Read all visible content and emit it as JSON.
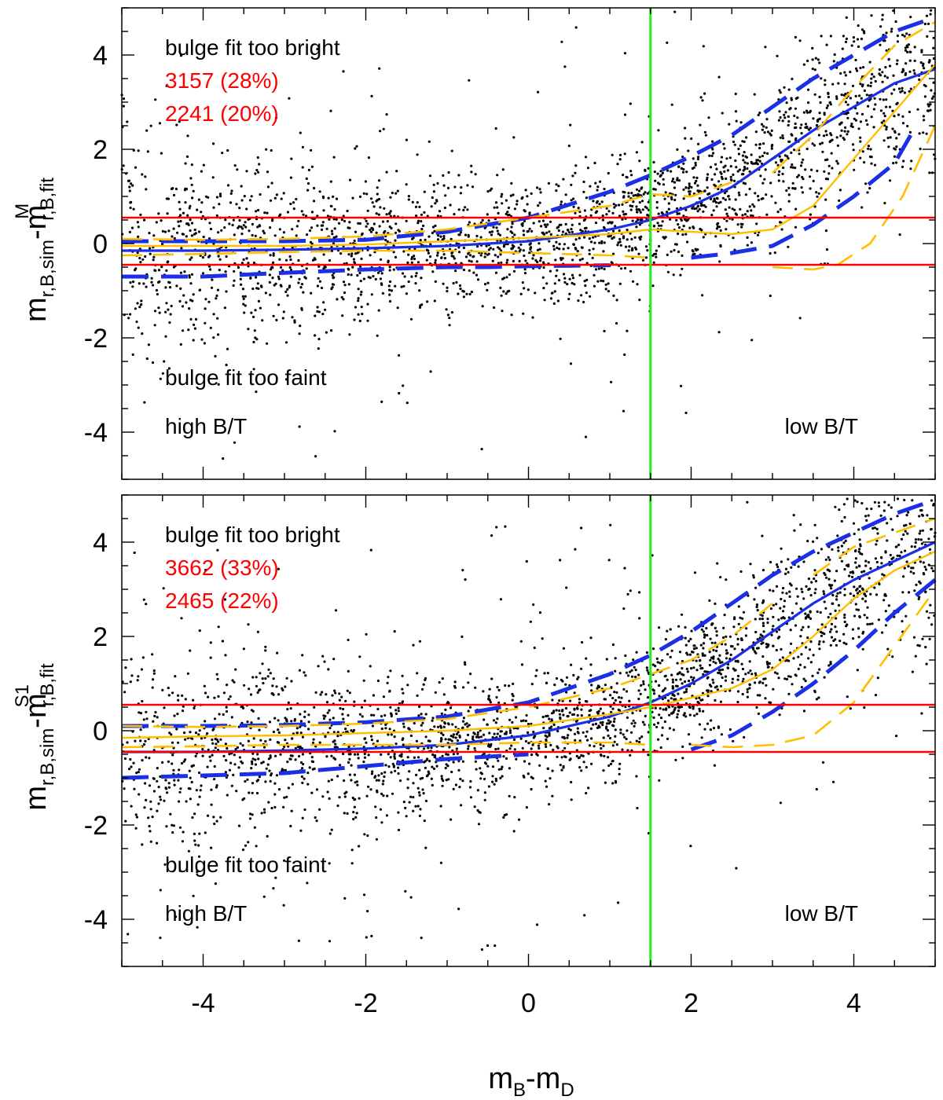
{
  "chart_data": [
    {
      "type": "scatter",
      "panel": "top",
      "xlabel": "m_B-m_D",
      "ylabel": {
        "base": "m",
        "sub1": "r,B,sim",
        "mid": "-m",
        "sup": "M",
        "sub2": "r,B,fit"
      },
      "xlim": [
        -5,
        5
      ],
      "ylim": [
        -5,
        5
      ],
      "xticks": [
        -4,
        -2,
        0,
        2,
        4
      ],
      "yticks": [
        -4,
        -2,
        0,
        2,
        4
      ],
      "hlines": [
        0.55,
        -0.45
      ],
      "vline": 1.5,
      "annotations": {
        "top": "bulge fit too bright",
        "count1": "3157 (28%)",
        "count2": "2241 (20%)",
        "faint": "bulge fit too faint",
        "high": "high B/T",
        "low": "low B/T"
      },
      "series": [
        {
          "name": "blue median",
          "x": [
            -5,
            -4,
            -3,
            -2,
            -1,
            0,
            1,
            1.5,
            2,
            2.5,
            3,
            3.5,
            4,
            4.5,
            5
          ],
          "y": [
            -0.15,
            -0.15,
            -0.13,
            -0.1,
            -0.05,
            0.05,
            0.3,
            0.5,
            0.8,
            1.2,
            1.8,
            2.4,
            2.9,
            3.4,
            3.7
          ]
        },
        {
          "name": "blue upper",
          "x": [
            -5,
            -4,
            -3,
            -2,
            -1,
            0,
            1,
            1.5,
            2,
            2.5,
            3,
            3.5,
            4,
            4.5,
            5
          ],
          "y": [
            0.05,
            0.05,
            0.05,
            0.08,
            0.25,
            0.55,
            1.1,
            1.45,
            1.85,
            2.3,
            2.9,
            3.5,
            4.0,
            4.5,
            4.8
          ]
        },
        {
          "name": "blue lower",
          "x": [
            -5,
            -4,
            -3,
            -2,
            -1,
            -0.5,
            0,
            0.5,
            1
          ],
          "y": [
            -0.7,
            -0.7,
            -0.62,
            -0.55,
            -0.5,
            -0.5,
            -0.48,
            -0.47,
            -0.46
          ]
        },
        {
          "name": "blue lower right",
          "x": [
            2,
            2.5,
            3,
            3.5,
            4,
            4.5,
            4.7
          ],
          "y": [
            -0.3,
            -0.2,
            -0.05,
            0.4,
            1.0,
            1.7,
            2.3
          ]
        },
        {
          "name": "orange median",
          "x": [
            -5,
            -4,
            -3,
            -2,
            -1,
            0,
            1,
            1.5,
            2,
            2.5,
            3,
            3.5,
            4,
            4.5,
            5
          ],
          "y": [
            -0.05,
            -0.05,
            -0.05,
            -0.02,
            0.05,
            0.12,
            0.2,
            0.3,
            0.25,
            0.2,
            0.3,
            0.8,
            1.8,
            2.8,
            3.8
          ]
        },
        {
          "name": "orange upper",
          "x": [
            -5,
            -4,
            -3,
            -2,
            -1,
            0,
            1,
            1.5,
            2,
            2.5
          ],
          "y": [
            0.1,
            0.08,
            0.1,
            0.15,
            0.3,
            0.55,
            0.8,
            1.05,
            1.0,
            1.3
          ]
        },
        {
          "name": "orange upper right",
          "x": [
            3,
            3.5,
            4,
            4.5,
            5
          ],
          "y": [
            1.5,
            2.3,
            3.3,
            4.2,
            4.7
          ]
        },
        {
          "name": "orange lower",
          "x": [
            -5,
            -4,
            -3,
            -2,
            -1,
            0,
            1,
            1.5
          ],
          "y": [
            -0.25,
            -0.22,
            -0.18,
            -0.15,
            -0.15,
            -0.2,
            -0.25,
            -0.3
          ]
        },
        {
          "name": "orange lower right",
          "x": [
            3,
            3.5,
            3.8,
            4.2,
            4.6,
            5
          ],
          "y": [
            -0.5,
            -0.55,
            -0.45,
            0.0,
            1.0,
            2.5
          ]
        }
      ]
    },
    {
      "type": "scatter",
      "panel": "bottom",
      "xlabel": "m_B-m_D",
      "ylabel": {
        "base": "m",
        "sub1": "r,B,sim",
        "mid": "-m",
        "sup": "S1",
        "sub2": "r,B,fit"
      },
      "xlim": [
        -5,
        5
      ],
      "ylim": [
        -5,
        5
      ],
      "xticks": [
        -4,
        -2,
        0,
        2,
        4
      ],
      "yticks": [
        -4,
        -2,
        0,
        2,
        4
      ],
      "hlines": [
        0.55,
        -0.45
      ],
      "vline": 1.5,
      "annotations": {
        "top": "bulge fit too bright",
        "count1": "3662 (33%)",
        "count2": "2465 (22%)",
        "faint": "bulge fit too faint",
        "high": "high B/T",
        "low": "low B/T"
      },
      "series": [
        {
          "name": "blue median",
          "x": [
            -5,
            -4,
            -3,
            -2,
            -1,
            0,
            1,
            1.5,
            2,
            2.5,
            3,
            3.5,
            4,
            4.5,
            5
          ],
          "y": [
            -0.45,
            -0.45,
            -0.42,
            -0.38,
            -0.3,
            -0.1,
            0.3,
            0.6,
            1.0,
            1.5,
            2.1,
            2.7,
            3.2,
            3.6,
            4.0
          ]
        },
        {
          "name": "blue upper",
          "x": [
            -5,
            -4,
            -3,
            -2,
            -1,
            0,
            1,
            1.5,
            2,
            2.5,
            3,
            3.5,
            4,
            4.5,
            5
          ],
          "y": [
            0.1,
            0.1,
            0.12,
            0.18,
            0.3,
            0.6,
            1.2,
            1.6,
            2.1,
            2.7,
            3.3,
            3.8,
            4.2,
            4.6,
            4.9
          ]
        },
        {
          "name": "blue lower",
          "x": [
            -5,
            -4,
            -3,
            -2,
            -1,
            -0.5,
            0
          ],
          "y": [
            -1.0,
            -0.95,
            -0.9,
            -0.75,
            -0.6,
            -0.55,
            -0.5
          ]
        },
        {
          "name": "blue lower right",
          "x": [
            2,
            2.5,
            3,
            3.5,
            4,
            4.5,
            5
          ],
          "y": [
            -0.4,
            -0.1,
            0.4,
            1.0,
            1.7,
            2.5,
            3.2
          ]
        },
        {
          "name": "orange median",
          "x": [
            -5,
            -4,
            -3,
            -2,
            -1,
            0,
            1,
            1.5,
            2,
            2.5,
            3,
            3.5,
            4,
            4.5,
            5
          ],
          "y": [
            -0.15,
            -0.12,
            -0.1,
            -0.05,
            0.0,
            0.1,
            0.35,
            0.5,
            0.7,
            0.9,
            1.3,
            2.0,
            2.8,
            3.4,
            3.8
          ]
        },
        {
          "name": "orange upper",
          "x": [
            -5,
            -4,
            -3,
            -2,
            -1,
            0,
            1,
            1.5,
            2,
            2.5,
            3
          ],
          "y": [
            0.1,
            0.08,
            0.1,
            0.15,
            0.25,
            0.5,
            0.9,
            1.2,
            1.5,
            2.0,
            2.7
          ]
        },
        {
          "name": "orange upper right",
          "x": [
            3.5,
            4,
            4.5,
            5
          ],
          "y": [
            3.3,
            3.9,
            4.2,
            4.5
          ]
        },
        {
          "name": "orange lower",
          "x": [
            -5,
            -4,
            -3,
            -2,
            -1,
            0,
            1,
            1.5
          ],
          "y": [
            -0.35,
            -0.33,
            -0.3,
            -0.3,
            -0.3,
            -0.25,
            -0.25,
            -0.3
          ]
        },
        {
          "name": "orange lower right",
          "x": [
            2,
            2.5,
            3,
            3.5,
            4,
            4.5,
            5
          ],
          "y": [
            -0.3,
            -0.35,
            -0.3,
            -0.1,
            0.6,
            1.8,
            3.0
          ]
        }
      ]
    }
  ]
}
